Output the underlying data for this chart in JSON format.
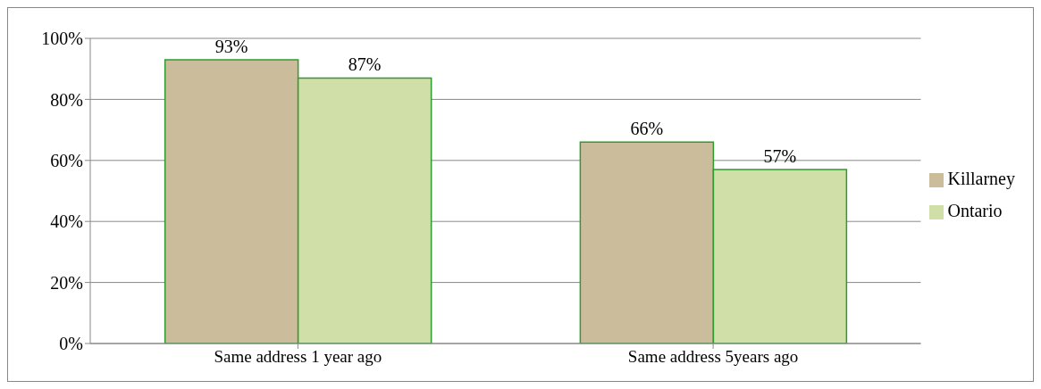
{
  "chart_data": {
    "type": "bar",
    "categories": [
      "Same address 1 year ago",
      "Same address 5years ago"
    ],
    "series": [
      {
        "name": "Killarney",
        "color": "#cbbd9c",
        "values": [
          93,
          66
        ]
      },
      {
        "name": "Ontario",
        "color": "#d0dea8",
        "values": [
          87,
          57
        ]
      }
    ],
    "ylim": [
      0,
      100
    ],
    "yticks": [
      {
        "value": 0,
        "label": "0%"
      },
      {
        "value": 20,
        "label": "20%"
      },
      {
        "value": 40,
        "label": "40%"
      },
      {
        "value": 60,
        "label": "60%"
      },
      {
        "value": 80,
        "label": "80%"
      },
      {
        "value": 100,
        "label": "100%"
      }
    ],
    "value_labels": [
      [
        "93%",
        "66%"
      ],
      [
        "87%",
        "57%"
      ]
    ],
    "grid": "y",
    "legend": "right"
  }
}
